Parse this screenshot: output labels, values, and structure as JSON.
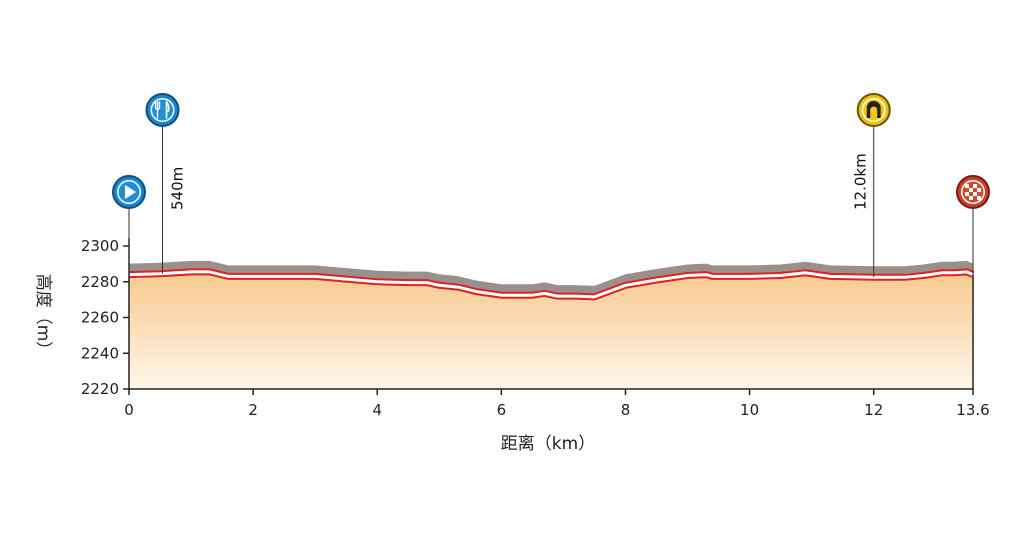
{
  "chart_data": {
    "type": "area",
    "title": "",
    "xlabel": "距离（km）",
    "ylabel": "高度（m）",
    "xlim": [
      0,
      13.6
    ],
    "ylim": [
      2220,
      2300
    ],
    "x_ticks": [
      0,
      2,
      4,
      6,
      8,
      10,
      12,
      13.6
    ],
    "x_tick_labels": [
      "0",
      "2",
      "4",
      "6",
      "8",
      "10",
      "12",
      "13.6"
    ],
    "y_ticks": [
      2220,
      2240,
      2260,
      2280,
      2300
    ],
    "y_tick_labels": [
      "2220",
      "2240",
      "2260",
      "2280",
      "2300"
    ],
    "grid": false,
    "colors": {
      "fill_top": "#f7c98e",
      "fill_bottom": "#fff6ea",
      "shadow": "#9a8f8a",
      "route_line": "#dd2222",
      "axis": "#222222"
    },
    "series": [
      {
        "x": [
          0,
          0.5,
          1.0,
          1.3,
          1.6,
          2.0,
          3.0,
          3.5,
          4.0,
          4.5,
          4.8,
          5.0,
          5.3,
          5.6,
          6.0,
          6.5,
          6.7,
          6.9,
          7.2,
          7.5,
          8.0,
          8.5,
          9.0,
          9.3,
          9.4,
          10.0,
          10.5,
          10.9,
          11.3,
          12.0,
          12.5,
          12.8,
          13.1,
          13.3,
          13.5,
          13.6
        ],
        "y": [
          2284,
          2284.5,
          2285.5,
          2285.5,
          2283,
          2283,
          2283,
          2281.5,
          2280,
          2279.5,
          2279.5,
          2278,
          2277,
          2274.5,
          2272.5,
          2272.5,
          2273.5,
          2272,
          2272,
          2271.5,
          2278,
          2281,
          2283.5,
          2284,
          2283,
          2283,
          2283.5,
          2285,
          2283,
          2282.5,
          2282.5,
          2283.5,
          2285,
          2285,
          2285.5,
          2284
        ]
      }
    ],
    "markers": [
      {
        "name": "start",
        "icon": "start-play-icon",
        "x": 0,
        "label": ""
      },
      {
        "name": "feed-zone",
        "icon": "fork-knife-icon",
        "x": 0.54,
        "label": "540m"
      },
      {
        "name": "tunnel",
        "icon": "tunnel-icon",
        "x": 12.0,
        "label": "12.0km"
      },
      {
        "name": "finish",
        "icon": "checkered-flag-icon",
        "x": 13.6,
        "label": ""
      }
    ]
  }
}
